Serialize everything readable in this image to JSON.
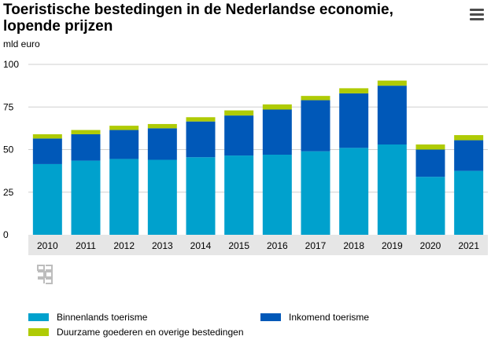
{
  "title": "Toeristische bestedingen in de Nederlandse economie, lopende prijzen",
  "unit_label": "mld euro",
  "menu_icon": "hamburger-menu-icon",
  "logo_icon": "cbs-logo-icon",
  "colors": {
    "binnenlands": "#00a1cd",
    "inkomend": "#0058b8",
    "duurzame": "#afcb05",
    "grid": "#cfcfcf",
    "axis_band": "#e6e6e6"
  },
  "legend": {
    "binnenlands": "Binnenlands toerisme",
    "inkomend": "Inkomend toerisme",
    "duurzame": "Duurzame goederen en overige bestedingen"
  },
  "chart_data": {
    "type": "bar",
    "stacked": true,
    "title": "Toeristische bestedingen in de Nederlandse economie, lopende prijzen",
    "ylabel": "mld euro",
    "xlabel": "",
    "ylim": [
      0,
      100
    ],
    "yticks": [
      0,
      25,
      50,
      75,
      100
    ],
    "categories": [
      "2010",
      "2011",
      "2012",
      "2013",
      "2014",
      "2015",
      "2016",
      "2017",
      "2018",
      "2019",
      "2020",
      "2021"
    ],
    "series": [
      {
        "name": "Binnenlands toerisme",
        "key": "binnenlands",
        "values": [
          41.5,
          43.5,
          44.5,
          44.0,
          45.5,
          46.5,
          47.0,
          49.0,
          51.0,
          53.0,
          34.0,
          37.5
        ]
      },
      {
        "name": "Inkomend toerisme",
        "key": "inkomend",
        "values": [
          15.0,
          15.5,
          17.0,
          18.5,
          21.0,
          23.5,
          26.5,
          30.0,
          32.0,
          34.5,
          16.0,
          18.0
        ]
      },
      {
        "name": "Duurzame goederen en overige bestedingen",
        "key": "duurzame",
        "values": [
          2.5,
          2.5,
          2.5,
          2.5,
          2.5,
          3.0,
          3.0,
          2.5,
          3.0,
          3.0,
          3.0,
          3.0
        ]
      }
    ],
    "grid": true,
    "legend_position": "bottom"
  }
}
